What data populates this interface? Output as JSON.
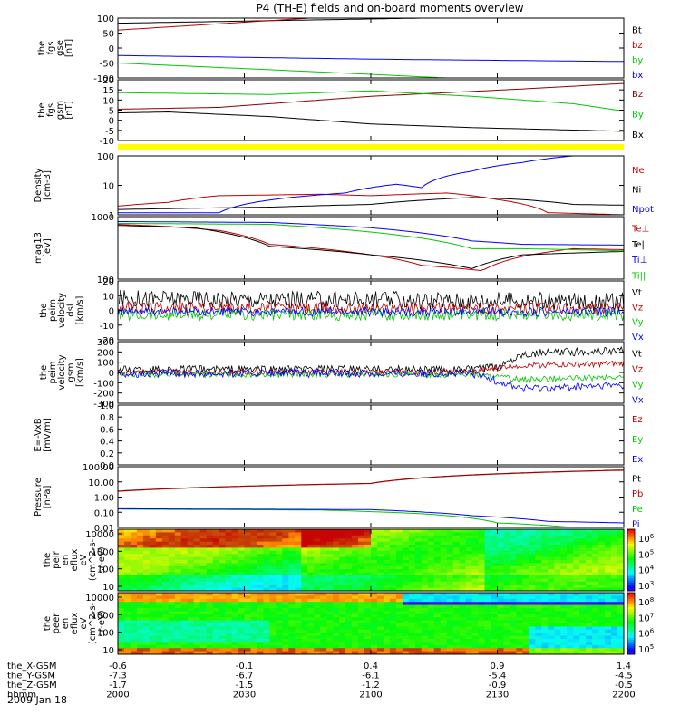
{
  "title": "P4 (TH-E) fields and on-board moments overview",
  "date_label": "2009 Jan 18",
  "colors": {
    "black": "#000000",
    "red": "#c00000",
    "green": "#00c800",
    "blue": "#0000ff",
    "darkred": "#8b0000",
    "yellow": "#ffff00"
  },
  "chart_data": [
    {
      "type": "line",
      "panel": "fgs_gse",
      "ylabel": [
        "the",
        "fgs",
        "gse",
        "[nT]"
      ],
      "yticks": [
        "100",
        "50",
        "0",
        "-50",
        "-100"
      ],
      "ylim": [
        -100,
        100
      ],
      "series": [
        {
          "name": "Bt",
          "color": "black",
          "points": [
            [
              0,
              83
            ],
            [
              0.6,
              100
            ]
          ]
        },
        {
          "name": "bz",
          "color": "red",
          "points": [
            [
              0,
              60
            ],
            [
              0.38,
              100
            ]
          ]
        },
        {
          "name": "by",
          "color": "green",
          "points": [
            [
              0,
              -50
            ],
            [
              0.4,
              -80
            ],
            [
              0.65,
              -100
            ]
          ]
        },
        {
          "name": "bx",
          "color": "blue",
          "points": [
            [
              0,
              -25
            ],
            [
              0.5,
              -37
            ],
            [
              1,
              -45
            ]
          ]
        }
      ]
    },
    {
      "type": "line",
      "panel": "fgs_gsm",
      "ylabel": [
        "the",
        "fgs",
        "gsm",
        "[nT]"
      ],
      "yticks": [
        "20",
        "15",
        "10",
        "5",
        "0",
        "-5",
        "-10"
      ],
      "ylim": [
        -13,
        20
      ],
      "series": [
        {
          "name": "Bz",
          "color": "darkred",
          "points": [
            [
              0,
              4
            ],
            [
              0.2,
              5
            ],
            [
              0.5,
              11
            ],
            [
              0.8,
              15
            ],
            [
              1,
              18
            ]
          ]
        },
        {
          "name": "By",
          "color": "green",
          "points": [
            [
              0,
              13
            ],
            [
              0.3,
              12
            ],
            [
              0.5,
              14
            ],
            [
              0.7,
              11
            ],
            [
              0.9,
              7
            ],
            [
              1,
              3
            ]
          ]
        },
        {
          "name": "Bx",
          "color": "black",
          "points": [
            [
              0,
              2
            ],
            [
              0.1,
              2.5
            ],
            [
              0.3,
              0
            ],
            [
              0.5,
              -4
            ],
            [
              0.7,
              -6
            ],
            [
              1,
              -8
            ]
          ]
        }
      ]
    },
    {
      "type": "line",
      "panel": "density",
      "ylog": true,
      "ylabel": [
        "Density",
        "[cm-3]"
      ],
      "yticks": [
        "100",
        "10",
        "1"
      ],
      "ylim": [
        0.4,
        200
      ],
      "series": [
        {
          "name": "Ne",
          "color": "red",
          "points": [
            [
              0,
              1
            ],
            [
              0.1,
              1.5
            ],
            [
              0.2,
              3
            ],
            [
              0.4,
              3.5
            ],
            [
              0.5,
              3
            ],
            [
              0.65,
              4
            ],
            [
              0.75,
              2
            ],
            [
              0.85,
              0.5
            ],
            [
              1,
              0.4
            ]
          ]
        },
        {
          "name": "Ni",
          "color": "black",
          "points": [
            [
              0,
              0.7
            ],
            [
              0.3,
              0.9
            ],
            [
              0.5,
              1.2
            ],
            [
              0.7,
              2.5
            ],
            [
              0.8,
              2
            ],
            [
              0.9,
              1.2
            ],
            [
              1,
              1.1
            ]
          ]
        },
        {
          "name": "Npot",
          "color": "blue",
          "points": [
            [
              0,
              0.5
            ],
            [
              0.2,
              0.5
            ],
            [
              0.45,
              4
            ],
            [
              0.55,
              10
            ],
            [
              0.6,
              7
            ],
            [
              0.7,
              40
            ],
            [
              0.8,
              100
            ],
            [
              0.9,
              200
            ]
          ]
        }
      ]
    },
    {
      "type": "line",
      "panel": "temperature",
      "ylog": true,
      "ylabel": [
        "mag13",
        "[eV]"
      ],
      "yticks": [
        "1000",
        "100"
      ],
      "ylim": [
        40,
        2500
      ],
      "series": [
        {
          "name": "Te⊥",
          "color": "red",
          "points": [
            [
              0,
              1500
            ],
            [
              0.1,
              1300
            ],
            [
              0.2,
              1000
            ],
            [
              0.3,
              400
            ],
            [
              0.45,
              250
            ],
            [
              0.6,
              100
            ],
            [
              0.72,
              70
            ],
            [
              0.8,
              180
            ],
            [
              0.9,
              300
            ],
            [
              1,
              280
            ]
          ]
        },
        {
          "name": "Te||",
          "color": "black",
          "points": [
            [
              0,
              1400
            ],
            [
              0.15,
              1200
            ],
            [
              0.3,
              350
            ],
            [
              0.5,
              200
            ],
            [
              0.7,
              80
            ],
            [
              0.8,
              200
            ],
            [
              1,
              250
            ]
          ]
        },
        {
          "name": "Ti⊥",
          "color": "blue",
          "points": [
            [
              0,
              1800
            ],
            [
              0.3,
              1700
            ],
            [
              0.5,
              1200
            ],
            [
              0.7,
              500
            ],
            [
              0.8,
              400
            ],
            [
              1,
              380
            ]
          ]
        },
        {
          "name": "Ti||",
          "color": "green",
          "points": [
            [
              0,
              1600
            ],
            [
              0.3,
              1500
            ],
            [
              0.5,
              900
            ],
            [
              0.7,
              300
            ],
            [
              0.8,
              300
            ],
            [
              1,
              260
            ]
          ]
        }
      ]
    },
    {
      "type": "line",
      "panel": "velocity_dsl",
      "noisy": true,
      "ylabel": [
        "the",
        "peim",
        "velocity",
        "dsl",
        "[km/s]"
      ],
      "yticks": [
        "20",
        "10",
        "0",
        "-10",
        "-20"
      ],
      "ylim": [
        -20,
        20
      ],
      "series": [
        {
          "name": "Vt",
          "color": "black",
          "points": [
            [
              0,
              8
            ],
            [
              1,
              6
            ]
          ],
          "noise": 6
        },
        {
          "name": "Vz",
          "color": "red",
          "points": [
            [
              0,
              2
            ],
            [
              1,
              1
            ]
          ],
          "noise": 4
        },
        {
          "name": "Vy",
          "color": "green",
          "points": [
            [
              0,
              -3
            ],
            [
              1,
              -3
            ]
          ],
          "noise": 4
        },
        {
          "name": "Vx",
          "color": "blue",
          "points": [
            [
              0,
              -1
            ],
            [
              1,
              -1
            ]
          ],
          "noise": 3
        }
      ]
    },
    {
      "type": "line",
      "panel": "velocity_gsm",
      "noisy": true,
      "ylabel": [
        "the",
        "peim",
        "velocity",
        "gsm",
        "[km/s]"
      ],
      "yticks": [
        "300",
        "200",
        "100",
        "0",
        "-100",
        "-200",
        "-300"
      ],
      "ylim": [
        -300,
        320
      ],
      "series": [
        {
          "name": "Vt",
          "color": "black",
          "points": [
            [
              0,
              40
            ],
            [
              0.7,
              40
            ],
            [
              0.75,
              60
            ],
            [
              0.8,
              200
            ],
            [
              1,
              230
            ]
          ],
          "noise": 40
        },
        {
          "name": "Vz",
          "color": "red",
          "points": [
            [
              0,
              10
            ],
            [
              0.7,
              10
            ],
            [
              0.78,
              80
            ],
            [
              1,
              100
            ]
          ],
          "noise": 30
        },
        {
          "name": "Vy",
          "color": "green",
          "points": [
            [
              0,
              -10
            ],
            [
              0.7,
              -10
            ],
            [
              0.8,
              -60
            ],
            [
              1,
              -40
            ]
          ],
          "noise": 30
        },
        {
          "name": "Vx",
          "color": "blue",
          "points": [
            [
              0,
              0
            ],
            [
              0.7,
              0
            ],
            [
              0.8,
              -150
            ],
            [
              1,
              -120
            ]
          ],
          "noise": 40
        }
      ]
    },
    {
      "type": "line",
      "panel": "efield",
      "ylabel": [
        "E=-VxB",
        "[mV/m]"
      ],
      "yticks": [
        "1.0",
        "0.8",
        "0.6",
        "0.4",
        "0.2",
        "0.0"
      ],
      "ylim": [
        0,
        1
      ],
      "series": [
        {
          "name": "Ez",
          "color": "red",
          "points": []
        },
        {
          "name": "Ey",
          "color": "green",
          "points": []
        },
        {
          "name": "Ex",
          "color": "blue",
          "points": []
        }
      ]
    },
    {
      "type": "line",
      "panel": "pressure",
      "ylog": true,
      "ylabel": [
        "Pressure",
        "[nPa]"
      ],
      "yticks": [
        "100.00",
        "10.00",
        "1.00",
        "0.10",
        "0.01"
      ],
      "ylim": [
        0.01,
        100
      ],
      "series": [
        {
          "name": "Pt",
          "color": "black",
          "points": [
            [
              0,
              2.5
            ],
            [
              0.5,
              8
            ],
            [
              1,
              60
            ]
          ]
        },
        {
          "name": "Pb",
          "color": "red",
          "points": [
            [
              0,
              2.4
            ],
            [
              0.5,
              7.8
            ],
            [
              1,
              58
            ]
          ]
        },
        {
          "name": "Pe",
          "color": "green",
          "points": [
            [
              0,
              0.16
            ],
            [
              0.4,
              0.14
            ],
            [
              0.6,
              0.08
            ],
            [
              0.75,
              0.02
            ],
            [
              0.9,
              0.01
            ],
            [
              1,
              0.01
            ]
          ]
        },
        {
          "name": "Pi",
          "color": "blue",
          "points": [
            [
              0,
              0.17
            ],
            [
              0.5,
              0.15
            ],
            [
              0.7,
              0.06
            ],
            [
              0.85,
              0.025
            ],
            [
              1,
              0.02
            ]
          ]
        }
      ]
    },
    {
      "type": "heatmap",
      "panel": "peir_spec",
      "ylabel": [
        "the",
        "peir",
        "en",
        "eflux",
        "eV",
        "(cm^2-s-",
        "sr-eV)"
      ],
      "yticks": [
        "10000",
        "1000",
        "100",
        "10"
      ],
      "colorbar": {
        "ticks": [
          "10^6",
          "10^5",
          "10^4",
          "10^3"
        ]
      }
    },
    {
      "type": "heatmap",
      "panel": "peer_spec",
      "ylabel": [
        "the",
        "peer",
        "en",
        "eflux",
        "eV",
        "(cm^2-s-",
        "sr-eV)"
      ],
      "yticks": [
        "10000",
        "1000",
        "100",
        "10"
      ],
      "colorbar": {
        "ticks": [
          "10^8",
          "10^7",
          "10^6",
          "10^5"
        ]
      }
    }
  ],
  "ephemeris": {
    "labels": [
      "the_X-GSM",
      "the_Y-GSM",
      "the_Z-GSM",
      "hhmm"
    ],
    "rows": [
      [
        "-0.6",
        "-0.1",
        "0.4",
        "0.9",
        "1.4"
      ],
      [
        "-7.3",
        "-6.7",
        "-6.1",
        "-5.4",
        "-4.5"
      ],
      [
        "-1.7",
        "-1.5",
        "-1.2",
        "-0.9",
        "-0.5"
      ],
      [
        "2000",
        "2030",
        "2100",
        "2130",
        "2200"
      ]
    ]
  }
}
